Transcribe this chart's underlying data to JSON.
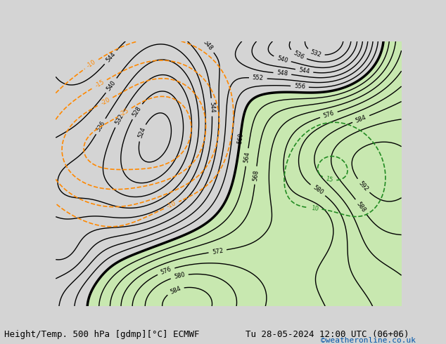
{
  "title": "Height/Temp. 500 hPa [gdmp][°C] ECMWF",
  "title_right": "Tu 28-05-2024 12:00 UTC (06+06)",
  "credit": "©weatheronline.co.uk",
  "bg_color": "#d4d4d4",
  "land_color": "#d4d4d4",
  "ocean_color": "#c0c8d0",
  "green_fill_color": "#c8e8b0",
  "figsize": [
    6.34,
    4.9
  ],
  "dpi": 100,
  "map_extent": [
    -30,
    45,
    27,
    75
  ],
  "z500_color": "#000000",
  "temp_neg_color": "#ff8800",
  "temp_pos_color": "#228b22",
  "cyan_color": "#00aacc",
  "font_size_title": 9,
  "font_size_credit": 8
}
